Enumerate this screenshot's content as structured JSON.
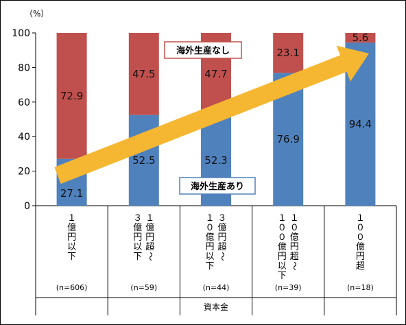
{
  "chart_data": {
    "type": "bar",
    "stacked": true,
    "unit_label": "（%）",
    "xlabel": "資本金",
    "ylim": [
      0,
      100
    ],
    "yticks": [
      0,
      20,
      40,
      60,
      80,
      100
    ],
    "grid": false,
    "categories": [
      {
        "label": "１億円以下",
        "n": "(n=606)"
      },
      {
        "label": "１億円超～３億円以下",
        "n": "(n=59)"
      },
      {
        "label": "３億円超～１０億円以下",
        "n": "(n=44)"
      },
      {
        "label": "１０億円超～１００億円以下",
        "n": "(n=39)"
      },
      {
        "label": "１００億円超",
        "n": "(n=18)"
      }
    ],
    "series": [
      {
        "name": "海外生産あり",
        "color": "#4f81bd",
        "values": [
          27.1,
          52.5,
          52.3,
          76.9,
          94.4
        ]
      },
      {
        "name": "海外生産なし",
        "color": "#c0504d",
        "values": [
          72.9,
          47.5,
          47.7,
          23.1,
          5.6
        ]
      }
    ],
    "annotation": {
      "type": "trend-arrow",
      "color": "#f5b731"
    }
  }
}
